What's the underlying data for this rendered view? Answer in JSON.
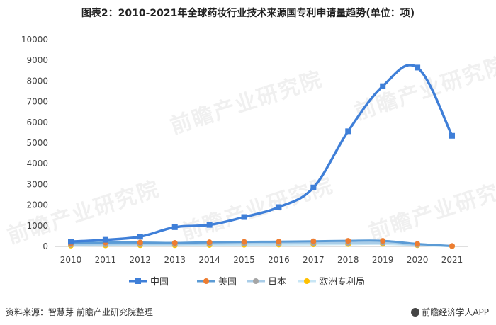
{
  "title": "图表2：2010-2021年全球药妆行业技术来源国专利申请量趋势(单位：项)",
  "watermark_text": "前瞻产业研究院",
  "source": "资料来源：智慧芽 前瞻产业研究院整理",
  "brand": "前瞻经济学人APP",
  "colors": {
    "china": "#3f7fd8",
    "usa": "#ed7d31",
    "japan": "#a5a5a5",
    "europe": "#ffc000"
  },
  "chart_data": {
    "type": "line",
    "title": "图表2：2010-2021年全球药妆行业技术来源国专利申请量趋势(单位：项)",
    "x": [
      "2010",
      "2011",
      "2012",
      "2013",
      "2014",
      "2015",
      "2016",
      "2017",
      "2018",
      "2019",
      "2020",
      "2021"
    ],
    "ylim": [
      0,
      10000
    ],
    "yticks": [
      0,
      1000,
      2000,
      3000,
      4000,
      5000,
      6000,
      7000,
      8000,
      9000,
      10000
    ],
    "grid": false,
    "legend_position": "bottom",
    "series": [
      {
        "name": "中国",
        "marker": "square",
        "values": [
          230,
          320,
          470,
          930,
          1040,
          1420,
          1900,
          2850,
          5570,
          7750,
          8650,
          5350
        ]
      },
      {
        "name": "美国",
        "marker": "circle",
        "values": [
          150,
          190,
          190,
          170,
          200,
          220,
          230,
          250,
          270,
          270,
          120,
          20
        ]
      },
      {
        "name": "日本",
        "marker": "circle",
        "values": [
          90,
          100,
          110,
          110,
          130,
          140,
          150,
          160,
          170,
          180,
          80,
          20
        ]
      },
      {
        "name": "欧洲专利局",
        "marker": "circle",
        "values": [
          40,
          50,
          60,
          60,
          70,
          80,
          90,
          100,
          110,
          120,
          60,
          10
        ]
      }
    ]
  }
}
